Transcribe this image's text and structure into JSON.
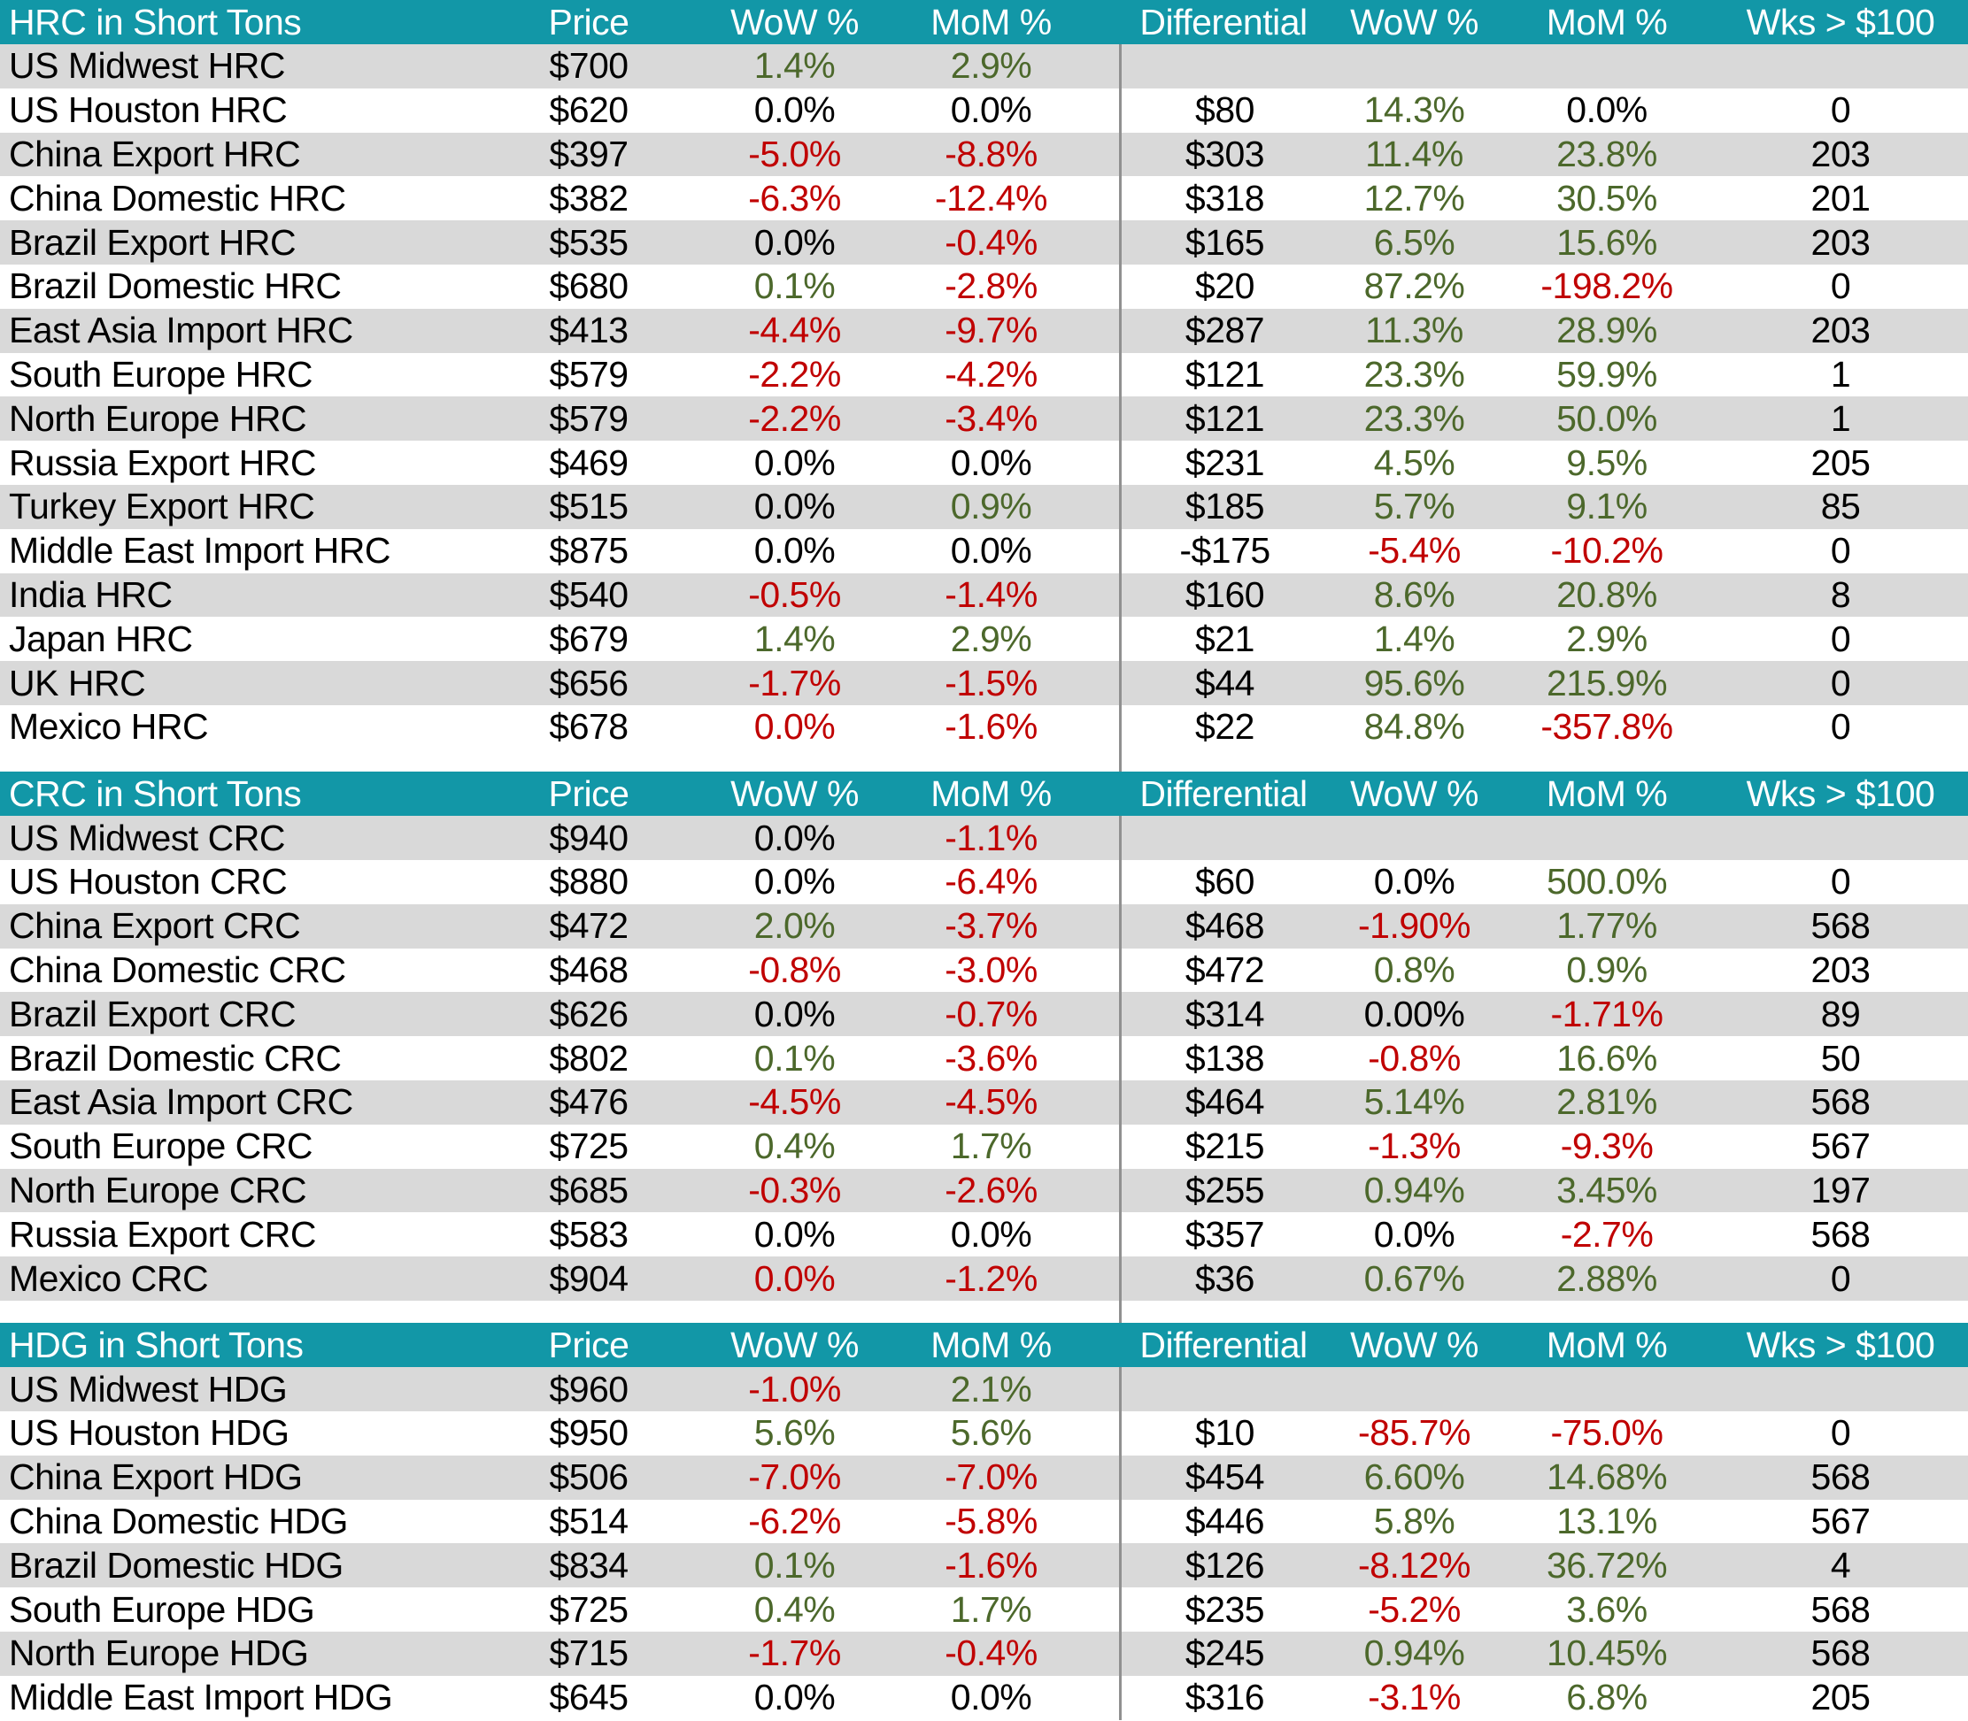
{
  "colors": {
    "header_bg": "#1297A7",
    "header_text": "#FFFFFF",
    "row_stripe": "#D9D9D9",
    "row_plain": "#FFFFFF",
    "positive_green": "#4C682B",
    "negative_red": "#C00000",
    "neutral_black": "#000000",
    "divider_gray": "#909090"
  },
  "chart_data": [
    {
      "type": "table",
      "title": "HRC in Short Tons",
      "columns": [
        "Price",
        "WoW %",
        "MoM %",
        "Differential",
        "WoW %",
        "MoM %",
        "Wks > $100"
      ],
      "rows": [
        {
          "cells": [
            "US Midwest HRC",
            "$700",
            "1.4%",
            "2.9%",
            "",
            "",
            "",
            ""
          ],
          "fmt": "kkggkkkk"
        },
        {
          "cells": [
            "US Houston HRC",
            "$620",
            "0.0%",
            "0.0%",
            "$80",
            "14.3%",
            "0.0%",
            "0"
          ],
          "fmt": "kkkkkgkk"
        },
        {
          "cells": [
            "China Export HRC",
            "$397",
            "-5.0%",
            "-8.8%",
            "$303",
            "11.4%",
            "23.8%",
            "203"
          ],
          "fmt": "kkrrkggk"
        },
        {
          "cells": [
            "China Domestic HRC",
            "$382",
            "-6.3%",
            "-12.4%",
            "$318",
            "12.7%",
            "30.5%",
            "201"
          ],
          "fmt": "kkrrkggk"
        },
        {
          "cells": [
            "Brazil Export HRC",
            "$535",
            "0.0%",
            "-0.4%",
            "$165",
            "6.5%",
            "15.6%",
            "203"
          ],
          "fmt": "kkkrkggk"
        },
        {
          "cells": [
            "Brazil Domestic HRC",
            "$680",
            "0.1%",
            "-2.8%",
            "$20",
            "87.2%",
            "-198.2%",
            "0"
          ],
          "fmt": "kkgrkgrk"
        },
        {
          "cells": [
            "East Asia Import HRC",
            "$413",
            "-4.4%",
            "-9.7%",
            "$287",
            "11.3%",
            "28.9%",
            "203"
          ],
          "fmt": "kkrrkggk"
        },
        {
          "cells": [
            "South Europe HRC",
            "$579",
            "-2.2%",
            "-4.2%",
            "$121",
            "23.3%",
            "59.9%",
            "1"
          ],
          "fmt": "kkrrkggk"
        },
        {
          "cells": [
            "North Europe HRC",
            "$579",
            "-2.2%",
            "-3.4%",
            "$121",
            "23.3%",
            "50.0%",
            "1"
          ],
          "fmt": "kkrrkggk"
        },
        {
          "cells": [
            "Russia Export HRC",
            "$469",
            "0.0%",
            "0.0%",
            "$231",
            "4.5%",
            "9.5%",
            "205"
          ],
          "fmt": "kkkkkggk"
        },
        {
          "cells": [
            "Turkey Export HRC",
            "$515",
            "0.0%",
            "0.9%",
            "$185",
            "5.7%",
            "9.1%",
            "85"
          ],
          "fmt": "kkkgkggk"
        },
        {
          "cells": [
            "Middle East Import HRC",
            "$875",
            "0.0%",
            "0.0%",
            "-$175",
            "-5.4%",
            "-10.2%",
            "0"
          ],
          "fmt": "kkkkkrrk"
        },
        {
          "cells": [
            "India HRC",
            "$540",
            "-0.5%",
            "-1.4%",
            "$160",
            "8.6%",
            "20.8%",
            "8"
          ],
          "fmt": "kkrrkggk"
        },
        {
          "cells": [
            "Japan HRC",
            "$679",
            "1.4%",
            "2.9%",
            "$21",
            "1.4%",
            "2.9%",
            "0"
          ],
          "fmt": "kkggkggk"
        },
        {
          "cells": [
            "UK HRC",
            "$656",
            "-1.7%",
            "-1.5%",
            "$44",
            "95.6%",
            "215.9%",
            "0"
          ],
          "fmt": "kkrrkggk"
        },
        {
          "cells": [
            "Mexico HRC",
            "$678",
            "0.0%",
            "-1.6%",
            "$22",
            "84.8%",
            "-357.8%",
            "0"
          ],
          "fmt": "kkrrkgrk"
        }
      ]
    },
    {
      "type": "table",
      "title": "CRC in Short Tons",
      "columns": [
        "Price",
        "WoW %",
        "MoM %",
        "Differential",
        "WoW %",
        "MoM %",
        "Wks > $100"
      ],
      "rows": [
        {
          "cells": [
            "US Midwest CRC",
            "$940",
            "0.0%",
            "-1.1%",
            "",
            "",
            "",
            ""
          ],
          "fmt": "kkkrkkkk"
        },
        {
          "cells": [
            "US Houston CRC",
            "$880",
            "0.0%",
            "-6.4%",
            "$60",
            "0.0%",
            "500.0%",
            "0"
          ],
          "fmt": "kkkrkkgk"
        },
        {
          "cells": [
            "China Export CRC",
            "$472",
            "2.0%",
            "-3.7%",
            "$468",
            "-1.90%",
            "1.77%",
            "568"
          ],
          "fmt": "kkgrkrgk"
        },
        {
          "cells": [
            "China Domestic CRC",
            "$468",
            "-0.8%",
            "-3.0%",
            "$472",
            "0.8%",
            "0.9%",
            "203"
          ],
          "fmt": "kkrrkggk"
        },
        {
          "cells": [
            "Brazil Export CRC",
            "$626",
            "0.0%",
            "-0.7%",
            "$314",
            "0.00%",
            "-1.71%",
            "89"
          ],
          "fmt": "kkkrkkrk"
        },
        {
          "cells": [
            "Brazil Domestic CRC",
            "$802",
            "0.1%",
            "-3.6%",
            "$138",
            "-0.8%",
            "16.6%",
            "50"
          ],
          "fmt": "kkgrkrgk"
        },
        {
          "cells": [
            "East Asia Import CRC",
            "$476",
            "-4.5%",
            "-4.5%",
            "$464",
            "5.14%",
            "2.81%",
            "568"
          ],
          "fmt": "kkrrkggk"
        },
        {
          "cells": [
            "South Europe CRC",
            "$725",
            "0.4%",
            "1.7%",
            "$215",
            "-1.3%",
            "-9.3%",
            "567"
          ],
          "fmt": "kkggkrrk"
        },
        {
          "cells": [
            "North Europe CRC",
            "$685",
            "-0.3%",
            "-2.6%",
            "$255",
            "0.94%",
            "3.45%",
            "197"
          ],
          "fmt": "kkrrkggk"
        },
        {
          "cells": [
            "Russia Export CRC",
            "$583",
            "0.0%",
            "0.0%",
            "$357",
            "0.0%",
            "-2.7%",
            "568"
          ],
          "fmt": "kkkkkkrk"
        },
        {
          "cells": [
            "Mexico CRC",
            "$904",
            "0.0%",
            "-1.2%",
            "$36",
            "0.67%",
            "2.88%",
            "0"
          ],
          "fmt": "kkrrkggk"
        }
      ]
    },
    {
      "type": "table",
      "title": "HDG in Short Tons",
      "columns": [
        "Price",
        "WoW %",
        "MoM %",
        "Differential",
        "WoW %",
        "MoM %",
        "Wks > $100"
      ],
      "rows": [
        {
          "cells": [
            "US Midwest HDG",
            "$960",
            "-1.0%",
            "2.1%",
            "",
            "",
            "",
            ""
          ],
          "fmt": "kkrgkkkk"
        },
        {
          "cells": [
            "US Houston HDG",
            "$950",
            "5.6%",
            "5.6%",
            "$10",
            "-85.7%",
            "-75.0%",
            "0"
          ],
          "fmt": "kkggkrrk"
        },
        {
          "cells": [
            "China Export HDG",
            "$506",
            "-7.0%",
            "-7.0%",
            "$454",
            "6.60%",
            "14.68%",
            "568"
          ],
          "fmt": "kkrrkggk"
        },
        {
          "cells": [
            "China Domestic HDG",
            "$514",
            "-6.2%",
            "-5.8%",
            "$446",
            "5.8%",
            "13.1%",
            "567"
          ],
          "fmt": "kkrrkggk"
        },
        {
          "cells": [
            "Brazil Domestic HDG",
            "$834",
            "0.1%",
            "-1.6%",
            "$126",
            "-8.12%",
            "36.72%",
            "4"
          ],
          "fmt": "kkgrkrgk"
        },
        {
          "cells": [
            "South Europe HDG",
            "$725",
            "0.4%",
            "1.7%",
            "$235",
            "-5.2%",
            "3.6%",
            "568"
          ],
          "fmt": "kkggkrgk"
        },
        {
          "cells": [
            "North Europe HDG",
            "$715",
            "-1.7%",
            "-0.4%",
            "$245",
            "0.94%",
            "10.45%",
            "568"
          ],
          "fmt": "kkrrkggk"
        },
        {
          "cells": [
            "Middle East Import HDG",
            "$645",
            "0.0%",
            "0.0%",
            "$316",
            "-3.1%",
            "6.8%",
            "205"
          ],
          "fmt": "kkkkkrgk"
        }
      ]
    }
  ]
}
